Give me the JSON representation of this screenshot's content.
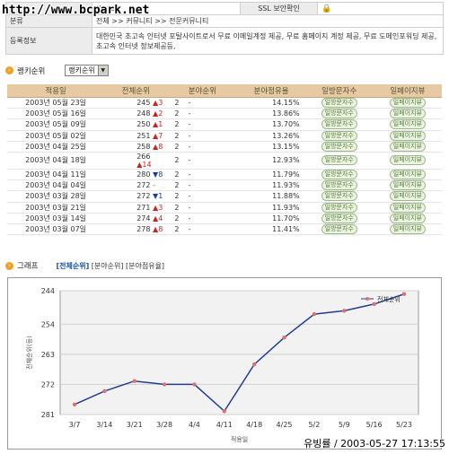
{
  "watermark": "http://www.bcpark.net",
  "info": {
    "url_partial": "rk.net",
    "ssl_label": "SSL 보안확인",
    "category_label": "분류",
    "category_value": "전체 >> 커뮤니티 >> 전문커뮤니티",
    "desc_label": "등록정보",
    "desc_value": "대한민국 초고속 인터넷 포탈사이트로서 무료 이메일계정 제공, 무료 홈페이지 계정 제공, 무료 도메인포워딩 제공, 초고속 인터넷 정보제공등,"
  },
  "ranking_section": {
    "title": "랭키순위",
    "select_value": "랭키순위"
  },
  "table": {
    "headers": [
      "적용일",
      "전체순위",
      "분야순위",
      "분야점유율",
      "일방문자수",
      "일페이지뷰"
    ],
    "visitors_button": "일방문자수",
    "pageview_button": "일페이지뷰",
    "rows": [
      {
        "date": "2003년 05월 23일",
        "rank": "245",
        "dir": "up",
        "change": "3",
        "field": "2",
        "field_change": "-",
        "share": "14.15%"
      },
      {
        "date": "2003년 05월 16일",
        "rank": "248",
        "dir": "up",
        "change": "2",
        "field": "2",
        "field_change": "-",
        "share": "13.86%"
      },
      {
        "date": "2003년 05월 09일",
        "rank": "250",
        "dir": "up",
        "change": "1",
        "field": "2",
        "field_change": "-",
        "share": "13.70%"
      },
      {
        "date": "2003년 05월 02일",
        "rank": "251",
        "dir": "up",
        "change": "7",
        "field": "2",
        "field_change": "-",
        "share": "13.26%"
      },
      {
        "date": "2003년 04월 25일",
        "rank": "258",
        "dir": "up",
        "change": "8",
        "field": "2",
        "field_change": "-",
        "share": "13.15%"
      },
      {
        "date": "2003년 04월 18일",
        "rank": "266",
        "dir": "up",
        "change": "14",
        "field": "2",
        "field_change": "-",
        "share": "12.93%"
      },
      {
        "date": "2003년 04월 11일",
        "rank": "280",
        "dir": "down",
        "change": "8",
        "field": "2",
        "field_change": "-",
        "share": "11.79%"
      },
      {
        "date": "2003년 04월 04일",
        "rank": "272",
        "dir": "same",
        "change": "-",
        "field": "2",
        "field_change": "-",
        "share": "11.93%"
      },
      {
        "date": "2003년 03월 28일",
        "rank": "272",
        "dir": "down",
        "change": "1",
        "field": "2",
        "field_change": "-",
        "share": "11.88%"
      },
      {
        "date": "2003년 03월 21일",
        "rank": "271",
        "dir": "up",
        "change": "3",
        "field": "2",
        "field_change": "-",
        "share": "11.93%"
      },
      {
        "date": "2003년 03월 14일",
        "rank": "274",
        "dir": "up",
        "change": "4",
        "field": "2",
        "field_change": "-",
        "share": "11.70%"
      },
      {
        "date": "2003년 03월 07일",
        "rank": "278",
        "dir": "up",
        "change": "8",
        "field": "2",
        "field_change": "-",
        "share": "11.41%"
      }
    ]
  },
  "graph_section": {
    "title": "그래프",
    "tab_total": "[전체순위]",
    "tab_field": "[분야순위]",
    "tab_share": "[분야점유율]"
  },
  "chart_data": {
    "type": "line",
    "x": [
      "3/7",
      "3/14",
      "3/21",
      "3/28",
      "4/4",
      "4/11",
      "4/18",
      "4/25",
      "5/2",
      "5/9",
      "5/16",
      "5/23"
    ],
    "series": [
      {
        "name": "전체순위",
        "values": [
          278,
          274,
          271,
          272,
          272,
          280,
          266,
          258,
          251,
          250,
          248,
          245
        ],
        "color": "#1f3f8f"
      }
    ],
    "ylabel": "전체순위(등)",
    "xlabel": "적용일",
    "yticks": [
      244,
      254,
      263,
      272,
      281
    ],
    "ylim": [
      244,
      281
    ],
    "y_inverted": true,
    "grid": true,
    "legend": "top-right"
  },
  "footer_stamp": "유빙률 / 2003-05-27 17:13:55",
  "colors": {
    "header_bg": "#e7c9a3",
    "up": "#d02020",
    "down": "#1a3aa0",
    "line": "#1f3f8f",
    "marker": "#e07070",
    "plot_bg": "#f2f2f2"
  }
}
